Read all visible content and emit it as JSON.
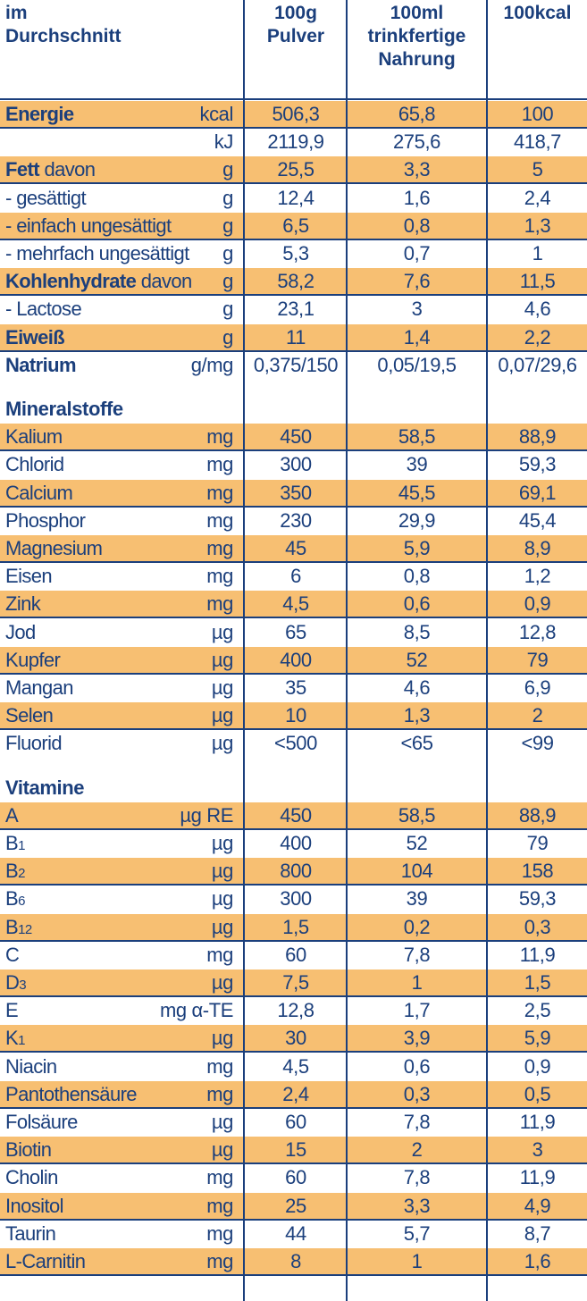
{
  "header": {
    "label_line1": "im",
    "label_line2": "Durchschnitt",
    "col1_line1": "100g",
    "col1_line2": "Pulver",
    "col2_line1": "100ml",
    "col2_line2": "trinkfertige",
    "col2_line3": "Nahrung",
    "col3_line1": "100kcal"
  },
  "basics": [
    {
      "name": "Energie",
      "bold": "Energie",
      "rest": "",
      "unit": "kcal",
      "v1": "506,3",
      "v2": "65,8",
      "v3": "100",
      "hl": true
    },
    {
      "name": "",
      "bold": "",
      "rest": "",
      "unit": "kJ",
      "v1": "2119,9",
      "v2": "275,6",
      "v3": "418,7",
      "hl": false
    },
    {
      "name": "Fett davon",
      "bold": "Fett",
      "rest": " davon",
      "unit": "g",
      "v1": "25,5",
      "v2": "3,3",
      "v3": "5",
      "hl": true
    },
    {
      "name": "- gesättigt",
      "bold": "",
      "rest": "- gesättigt",
      "unit": "g",
      "v1": "12,4",
      "v2": "1,6",
      "v3": "2,4",
      "hl": false
    },
    {
      "name": "- einfach ungesättigt",
      "bold": "",
      "rest": "- einfach ungesättigt",
      "unit": "g",
      "v1": "6,5",
      "v2": "0,8",
      "v3": "1,3",
      "hl": true
    },
    {
      "name": "- mehrfach ungesättigt",
      "bold": "",
      "rest": "- mehrfach ungesättigt",
      "unit": "g",
      "v1": "5,3",
      "v2": "0,7",
      "v3": "1",
      "hl": false
    },
    {
      "name": "Kohlenhydrate davon",
      "bold": "Kohlenhydrate",
      "rest": " davon",
      "unit": "g",
      "v1": "58,2",
      "v2": "7,6",
      "v3": "11,5",
      "hl": true
    },
    {
      "name": "- Lactose",
      "bold": "",
      "rest": "- Lactose",
      "unit": "g",
      "v1": "23,1",
      "v2": "3",
      "v3": "4,6",
      "hl": false
    },
    {
      "name": "Eiweiß",
      "bold": "Eiweiß",
      "rest": "",
      "unit": "g",
      "v1": "11",
      "v2": "1,4",
      "v3": "2,2",
      "hl": true
    },
    {
      "name": "Natrium",
      "bold": "Natrium",
      "rest": "",
      "unit": "g/mg",
      "v1": "0,375/150",
      "v2": "0,05/19,5",
      "v3": "0,07/29,6",
      "hl": false
    }
  ],
  "minerals_title": "Mineralstoffe",
  "minerals": [
    {
      "rest": "Kalium",
      "unit": "mg",
      "v1": "450",
      "v2": "58,5",
      "v3": "88,9",
      "hl": true
    },
    {
      "rest": "Chlorid",
      "unit": "mg",
      "v1": "300",
      "v2": "39",
      "v3": "59,3",
      "hl": false
    },
    {
      "rest": "Calcium",
      "unit": "mg",
      "v1": "350",
      "v2": "45,5",
      "v3": "69,1",
      "hl": true
    },
    {
      "rest": "Phosphor",
      "unit": "mg",
      "v1": "230",
      "v2": "29,9",
      "v3": "45,4",
      "hl": false
    },
    {
      "rest": "Magnesium",
      "unit": "mg",
      "v1": "45",
      "v2": "5,9",
      "v3": "8,9",
      "hl": true
    },
    {
      "rest": "Eisen",
      "unit": "mg",
      "v1": "6",
      "v2": "0,8",
      "v3": "1,2",
      "hl": false
    },
    {
      "rest": "Zink",
      "unit": "mg",
      "v1": "4,5",
      "v2": "0,6",
      "v3": "0,9",
      "hl": true
    },
    {
      "rest": "Jod",
      "unit": "µg",
      "v1": "65",
      "v2": "8,5",
      "v3": "12,8",
      "hl": false
    },
    {
      "rest": "Kupfer",
      "unit": "µg",
      "v1": "400",
      "v2": "52",
      "v3": "79",
      "hl": true
    },
    {
      "rest": "Mangan",
      "unit": "µg",
      "v1": "35",
      "v2": "4,6",
      "v3": "6,9",
      "hl": false
    },
    {
      "rest": "Selen",
      "unit": "µg",
      "v1": "10",
      "v2": "1,3",
      "v3": "2",
      "hl": true
    },
    {
      "rest": "Fluorid",
      "unit": "µg",
      "v1": "<500",
      "v2": "<65",
      "v3": "<99",
      "hl": false
    }
  ],
  "vitamins_title": "Vitamine",
  "vitamins": [
    {
      "rest": "A",
      "sub": "",
      "unit": "µg RE",
      "v1": "450",
      "v2": "58,5",
      "v3": "88,9",
      "hl": true
    },
    {
      "rest": "B",
      "sub": "1",
      "unit": "µg",
      "v1": "400",
      "v2": "52",
      "v3": "79",
      "hl": false
    },
    {
      "rest": "B",
      "sub": "2",
      "unit": "µg",
      "v1": "800",
      "v2": "104",
      "v3": "158",
      "hl": true
    },
    {
      "rest": "B",
      "sub": "6",
      "unit": "µg",
      "v1": "300",
      "v2": "39",
      "v3": "59,3",
      "hl": false
    },
    {
      "rest": "B",
      "sub": "12",
      "unit": "µg",
      "v1": "1,5",
      "v2": "0,2",
      "v3": "0,3",
      "hl": true
    },
    {
      "rest": "C",
      "sub": "",
      "unit": "mg",
      "v1": "60",
      "v2": "7,8",
      "v3": "11,9",
      "hl": false
    },
    {
      "rest": "D",
      "sub": "3",
      "unit": "µg",
      "v1": "7,5",
      "v2": "1",
      "v3": "1,5",
      "hl": true
    },
    {
      "rest": "E",
      "sub": "",
      "unit": "mg α-TE",
      "v1": "12,8",
      "v2": "1,7",
      "v3": "2,5",
      "hl": false
    },
    {
      "rest": "K",
      "sub": "1",
      "unit": "µg",
      "v1": "30",
      "v2": "3,9",
      "v3": "5,9",
      "hl": true
    },
    {
      "rest": "Niacin",
      "sub": "",
      "unit": "mg",
      "v1": "4,5",
      "v2": "0,6",
      "v3": "0,9",
      "hl": false
    },
    {
      "rest": "Pantothensäure",
      "sub": "",
      "unit": "mg",
      "v1": "2,4",
      "v2": "0,3",
      "v3": "0,5",
      "hl": true
    },
    {
      "rest": "Folsäure",
      "sub": "",
      "unit": "µg",
      "v1": "60",
      "v2": "7,8",
      "v3": "11,9",
      "hl": false
    },
    {
      "rest": "Biotin",
      "sub": "",
      "unit": "µg",
      "v1": "15",
      "v2": "2",
      "v3": "3",
      "hl": true
    },
    {
      "rest": "Cholin",
      "sub": "",
      "unit": "mg",
      "v1": "60",
      "v2": "7,8",
      "v3": "11,9",
      "hl": false
    },
    {
      "rest": "Inositol",
      "sub": "",
      "unit": "mg",
      "v1": "25",
      "v2": "3,3",
      "v3": "4,9",
      "hl": true
    },
    {
      "rest": "Taurin",
      "sub": "",
      "unit": "mg",
      "v1": "44",
      "v2": "5,7",
      "v3": "8,7",
      "hl": false
    },
    {
      "rest": "L-Carnitin",
      "sub": "",
      "unit": "mg",
      "v1": "8",
      "v2": "1",
      "v3": "1,6",
      "hl": true
    }
  ],
  "colors": {
    "text": "#1b3f7c",
    "highlight": "#f7bf72"
  }
}
